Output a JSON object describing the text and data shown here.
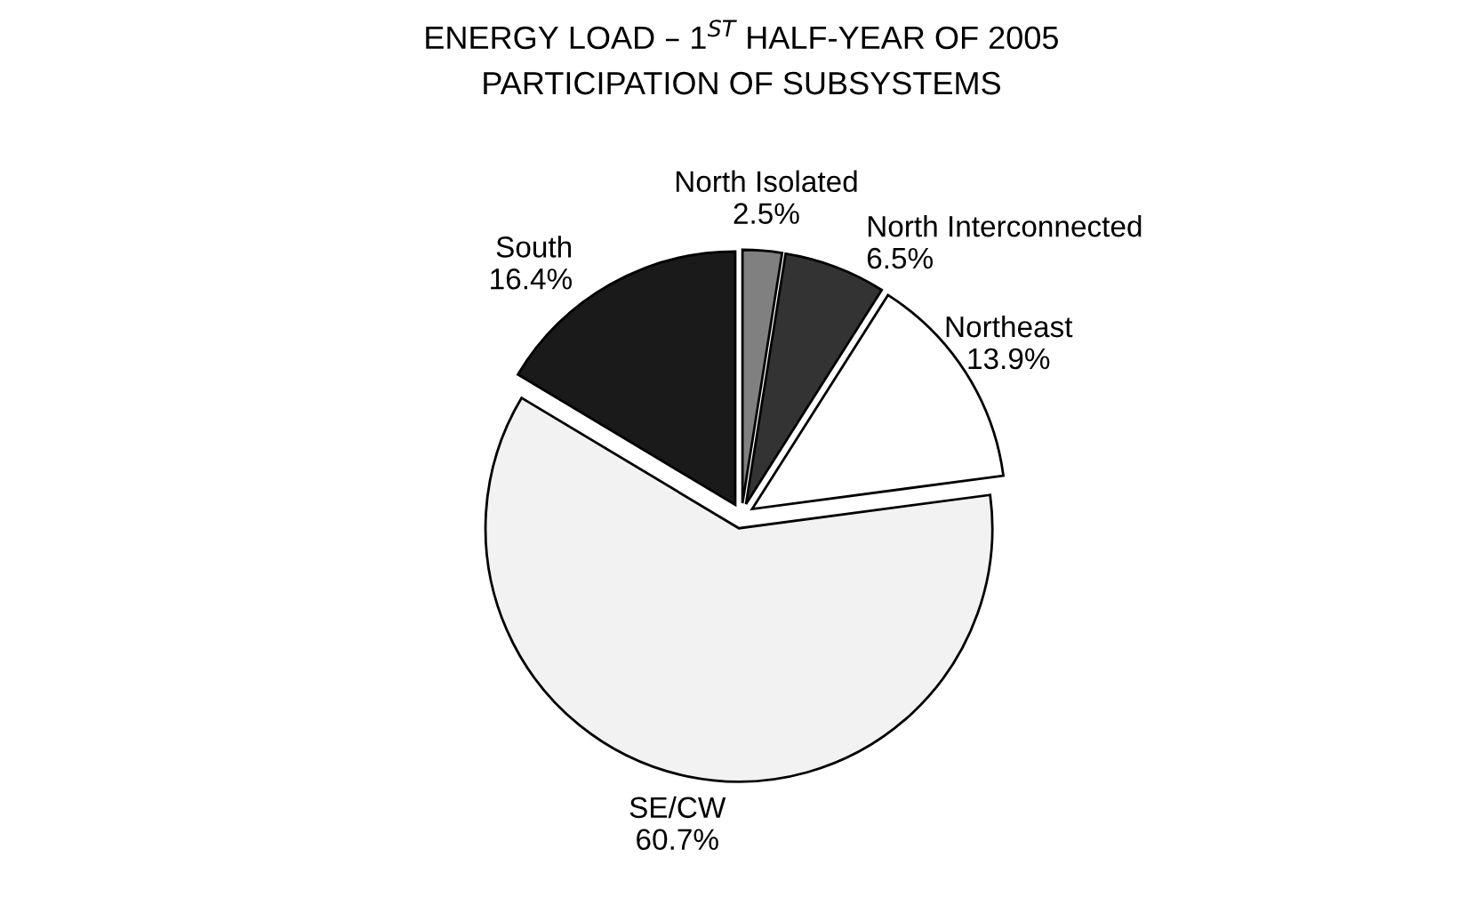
{
  "chart_data": {
    "type": "pie",
    "title": "ENERGY LOAD – 1$^{ST}$ HALF-YEAR OF 2005",
    "subtitle": "PARTICIPATION OF SUBSYSTEMS",
    "categories": [
      "North Isolated",
      "North Interconnected",
      "Northeast",
      "SE/CW",
      "South"
    ],
    "values": [
      2.5,
      6.5,
      13.9,
      60.7,
      16.4
    ],
    "value_labels": [
      "2.5%",
      "6.5%",
      "13.9%",
      "60.7%",
      "16.4%"
    ],
    "colors": [
      "#808080",
      "#333333",
      "#ffffff",
      "#f2f2f2",
      "#1a1a1a"
    ],
    "legend": false
  }
}
